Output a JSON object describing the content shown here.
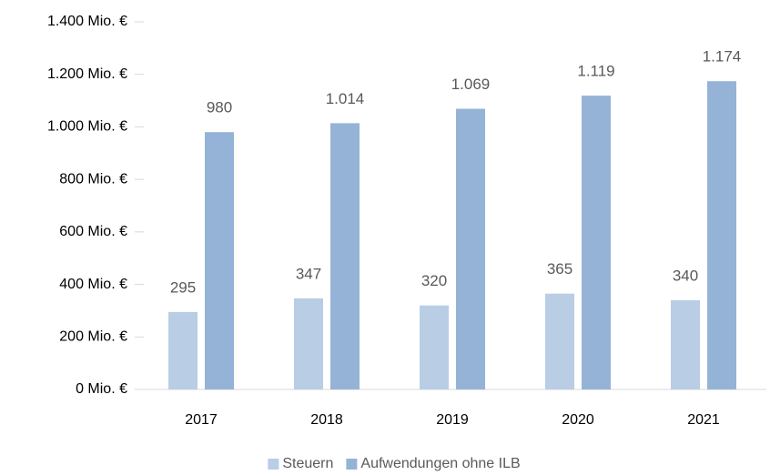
{
  "chart_data": {
    "type": "bar",
    "categories": [
      "2017",
      "2018",
      "2019",
      "2020",
      "2021"
    ],
    "series": [
      {
        "name": "Steuern",
        "color": "#b9cde5",
        "values": [
          295,
          347,
          320,
          365,
          340
        ],
        "value_labels": [
          "295",
          "347",
          "320",
          "365",
          "340"
        ]
      },
      {
        "name": "Aufwendungen ohne ILB",
        "color": "#95b3d7",
        "values": [
          980,
          1014,
          1069,
          1119,
          1174
        ],
        "value_labels": [
          "980",
          "1.014",
          "1.069",
          "1.119",
          "1.174"
        ]
      }
    ],
    "ylim": [
      0,
      1400
    ],
    "yticks": [
      {
        "value": 0,
        "label": "0 Mio. €"
      },
      {
        "value": 200,
        "label": "200 Mio. €"
      },
      {
        "value": 400,
        "label": "400 Mio. €"
      },
      {
        "value": 600,
        "label": "600 Mio. €"
      },
      {
        "value": 800,
        "label": "800 Mio. €"
      },
      {
        "value": 1000,
        "label": "1.000 Mio. €"
      },
      {
        "value": 1200,
        "label": "1.200 Mio. €"
      },
      {
        "value": 1400,
        "label": "1.400 Mio. €"
      }
    ],
    "grid": false,
    "legend": "bottom"
  }
}
